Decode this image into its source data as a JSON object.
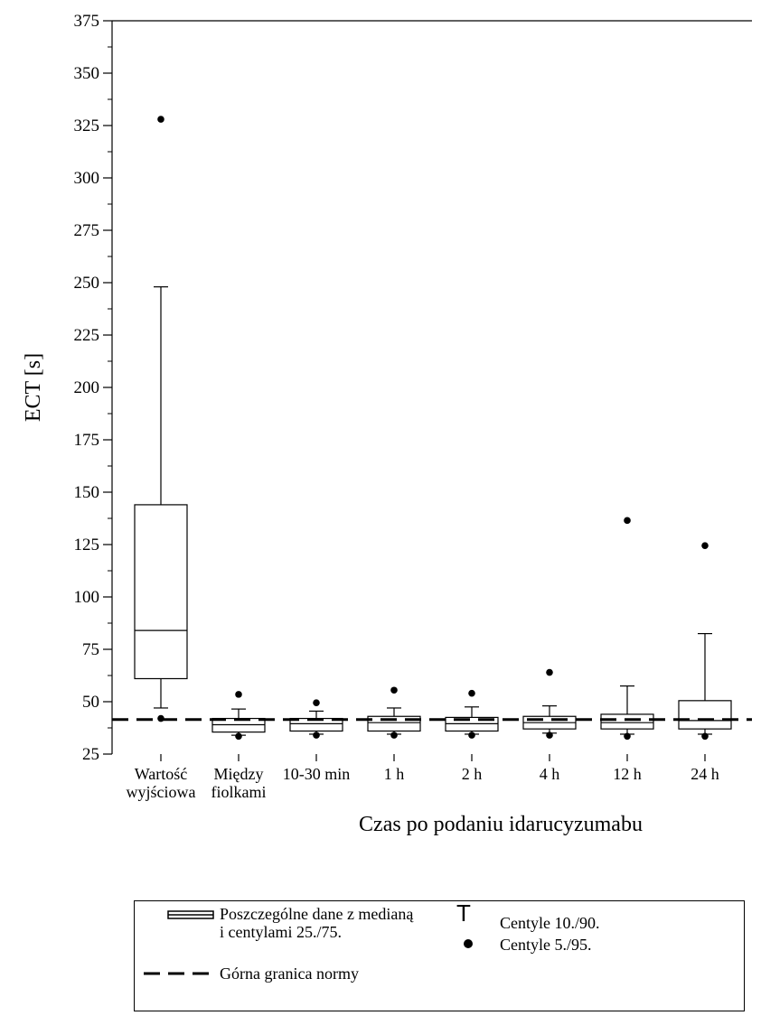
{
  "chart_data": {
    "type": "box",
    "ylabel": "ECT [s]",
    "xlabel": "Czas po podaniu idarucyzumabu",
    "ylim": [
      25,
      375
    ],
    "yticks": [
      25,
      50,
      75,
      100,
      125,
      150,
      175,
      200,
      225,
      250,
      275,
      300,
      325,
      350,
      375
    ],
    "reference_line": {
      "value": 41.5,
      "style": "dashed"
    },
    "categories": [
      [
        "Wartość",
        "wyjściowa"
      ],
      [
        "Między",
        "fiolkami"
      ],
      [
        "10-30 min"
      ],
      [
        "1 h"
      ],
      [
        "2 h"
      ],
      [
        "4 h"
      ],
      [
        "12 h"
      ],
      [
        "24 h"
      ]
    ],
    "boxes": [
      {
        "p5": 42,
        "p10": 47,
        "q1": 61,
        "median": 84,
        "q3": 144,
        "p90": 248,
        "p95": 328
      },
      {
        "p5": 33.5,
        "p10": 34,
        "q1": 35.5,
        "median": 39,
        "q3": 42,
        "p90": 46.5,
        "p95": 53.5
      },
      {
        "p5": 34,
        "p10": 34.5,
        "q1": 36,
        "median": 39.5,
        "q3": 42,
        "p90": 45.5,
        "p95": 49.5
      },
      {
        "p5": 34,
        "p10": 34.5,
        "q1": 36,
        "median": 40,
        "q3": 43,
        "p90": 47,
        "p95": 55.5
      },
      {
        "p5": 34,
        "p10": 34.5,
        "q1": 36,
        "median": 39.5,
        "q3": 42.5,
        "p90": 47.5,
        "p95": 54
      },
      {
        "p5": 34,
        "p10": 35,
        "q1": 37,
        "median": 40,
        "q3": 43,
        "p90": 48,
        "p95": 64
      },
      {
        "p5": 33.5,
        "p10": 34.5,
        "q1": 37,
        "median": 40,
        "q3": 44,
        "p90": 57.5,
        "p95": 136.5
      },
      {
        "p5": 33.5,
        "p10": 34.5,
        "q1": 37,
        "median": 41,
        "q3": 50.5,
        "p90": 82.5,
        "p95": 124.5
      }
    ]
  },
  "legend": {
    "box": [
      "Poszczególne dane z medianą",
      "i centylami 25./75."
    ],
    "dashed": "Górna granica normy",
    "whisker_symbol": "T",
    "whisker": "Centyle 10./90.",
    "dot": "Centyle 5./95."
  }
}
